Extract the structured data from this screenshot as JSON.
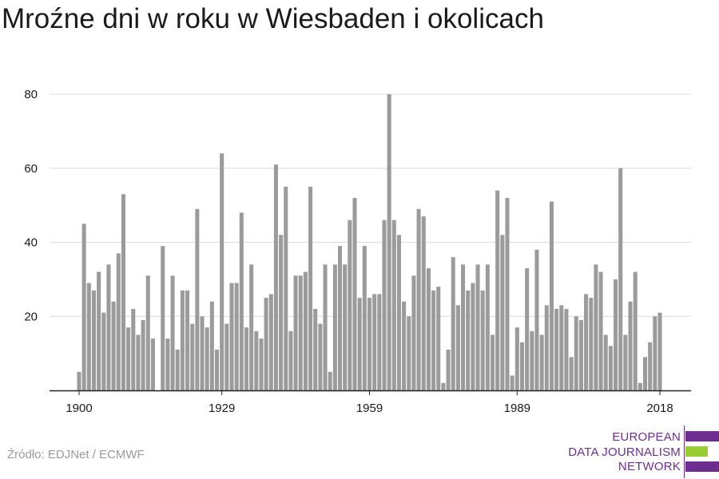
{
  "title": "Mroźne dni w roku w Wiesbaden i okolicach",
  "source": "Źródło: EDJNet / ECMWF",
  "logo": {
    "lines": [
      "EUROPEAN",
      "DATA JOURNALISM",
      "NETWORK"
    ],
    "colors": {
      "purple": "#6e2e91",
      "green": "#9acd32"
    }
  },
  "colors": {
    "bar": "#9b9b9b",
    "grid": "#dcdcdc",
    "axis": "#222222",
    "text": "#1a1a1a"
  },
  "chart_data": {
    "type": "bar",
    "title": "Mroźne dni w roku w Wiesbaden i okolicach",
    "xlabel": "",
    "ylabel": "",
    "ylim": [
      0,
      80
    ],
    "yticks": [
      20,
      40,
      60,
      80
    ],
    "xticks": [
      1900,
      1929,
      1959,
      1989,
      2018
    ],
    "xlim": [
      1900,
      2018
    ],
    "grid": true,
    "categories": [
      1900,
      1901,
      1902,
      1903,
      1904,
      1905,
      1906,
      1907,
      1908,
      1909,
      1910,
      1911,
      1912,
      1913,
      1914,
      1915,
      1916,
      1917,
      1918,
      1919,
      1920,
      1921,
      1922,
      1923,
      1924,
      1925,
      1926,
      1927,
      1928,
      1929,
      1930,
      1931,
      1932,
      1933,
      1934,
      1935,
      1936,
      1937,
      1938,
      1939,
      1940,
      1941,
      1942,
      1943,
      1944,
      1945,
      1946,
      1947,
      1948,
      1949,
      1950,
      1951,
      1952,
      1953,
      1954,
      1955,
      1956,
      1957,
      1958,
      1959,
      1960,
      1961,
      1962,
      1963,
      1964,
      1965,
      1966,
      1967,
      1968,
      1969,
      1970,
      1971,
      1972,
      1973,
      1974,
      1975,
      1976,
      1977,
      1978,
      1979,
      1980,
      1981,
      1982,
      1983,
      1984,
      1985,
      1986,
      1987,
      1988,
      1989,
      1990,
      1991,
      1992,
      1993,
      1994,
      1995,
      1996,
      1997,
      1998,
      1999,
      2000,
      2001,
      2002,
      2003,
      2004,
      2005,
      2006,
      2007,
      2008,
      2009,
      2010,
      2011,
      2012,
      2013,
      2014,
      2015,
      2016,
      2017,
      2018
    ],
    "values": [
      5,
      45,
      29,
      27,
      32,
      21,
      34,
      24,
      37,
      53,
      17,
      22,
      15,
      19,
      31,
      14,
      0,
      39,
      14,
      31,
      11,
      27,
      27,
      18,
      49,
      20,
      17,
      24,
      11,
      64,
      18,
      29,
      29,
      48,
      17,
      34,
      16,
      14,
      25,
      26,
      61,
      42,
      55,
      16,
      31,
      31,
      32,
      55,
      22,
      18,
      34,
      5,
      34,
      39,
      34,
      46,
      52,
      25,
      39,
      25,
      26,
      26,
      46,
      80,
      46,
      42,
      24,
      20,
      31,
      49,
      47,
      33,
      27,
      28,
      2,
      11,
      36,
      23,
      34,
      27,
      29,
      34,
      27,
      34,
      15,
      54,
      42,
      52,
      4,
      17,
      13,
      33,
      16,
      38,
      15,
      23,
      51,
      22,
      23,
      22,
      9,
      20,
      19,
      26,
      25,
      34,
      32,
      15,
      12,
      30,
      60,
      15,
      24,
      32,
      2,
      9,
      13,
      20,
      21
    ]
  }
}
